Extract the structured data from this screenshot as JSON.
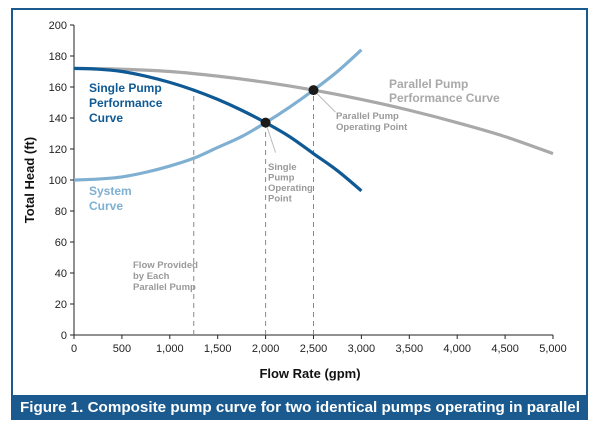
{
  "chart_data": {
    "type": "line",
    "caption": "Figure 1. Composite pump curve for two identical pumps operating in parallel",
    "xlabel": "Flow Rate (gpm)",
    "ylabel": "Total Head (ft)",
    "xlim": [
      0,
      5000
    ],
    "ylim": [
      0,
      200
    ],
    "xticks": [
      "0",
      "500",
      "1,000",
      "1,500",
      "2,000",
      "2,500",
      "3,000",
      "3,500",
      "4,000",
      "4,500",
      "5,000"
    ],
    "yticks": [
      "0",
      "20",
      "40",
      "60",
      "80",
      "100",
      "120",
      "140",
      "160",
      "180",
      "200"
    ],
    "grid": false,
    "series": [
      {
        "name": "Single Pump Performance Curve",
        "label_lines": [
          "Single Pump",
          "Performance",
          "Curve"
        ],
        "color": "#0f5a94",
        "x": [
          0,
          250,
          500,
          750,
          1000,
          1250,
          1500,
          1750,
          2000,
          2250,
          2500,
          2750,
          3000
        ],
        "y": [
          172,
          171.5,
          170,
          167,
          163,
          158,
          152,
          145,
          137,
          128,
          117,
          106,
          93
        ]
      },
      {
        "name": "System Curve",
        "label_lines": [
          "System",
          "Curve"
        ],
        "color": "#7fb0d2",
        "x": [
          0,
          250,
          500,
          750,
          1000,
          1250,
          1500,
          1750,
          2000,
          2250,
          2500,
          2750,
          3000
        ],
        "y": [
          100,
          100.6,
          102,
          105,
          109,
          114,
          121,
          128,
          137,
          147,
          158,
          170,
          184
        ]
      },
      {
        "name": "Parallel Pump Performance Curve",
        "label_lines": [
          "Parallel Pump",
          "Performance Curve"
        ],
        "color": "#a9a9a9",
        "x": [
          0,
          500,
          1000,
          1500,
          2000,
          2500,
          3000,
          3500,
          4000,
          4500,
          5000
        ],
        "y": [
          172,
          171.5,
          170,
          167,
          163,
          158,
          152,
          145,
          137,
          128,
          117
        ]
      }
    ],
    "operating_points": [
      {
        "label_lines": [
          "Single",
          "Pump",
          "Operating",
          "Point"
        ],
        "x": 2000,
        "y": 137
      },
      {
        "label_lines": [
          "Parallel Pump",
          "Operating Point"
        ],
        "x": 2500,
        "y": 158
      }
    ],
    "reference_lines": [
      {
        "x": 1250,
        "label_lines": [
          "Flow Provided",
          "by Each",
          "Parallel Pump"
        ]
      },
      {
        "x": 2000
      },
      {
        "x": 2500
      }
    ],
    "colors": {
      "frame": "#1a5a8f",
      "caption_bg": "#1a5a8f",
      "point": "#1a1a1a"
    }
  }
}
